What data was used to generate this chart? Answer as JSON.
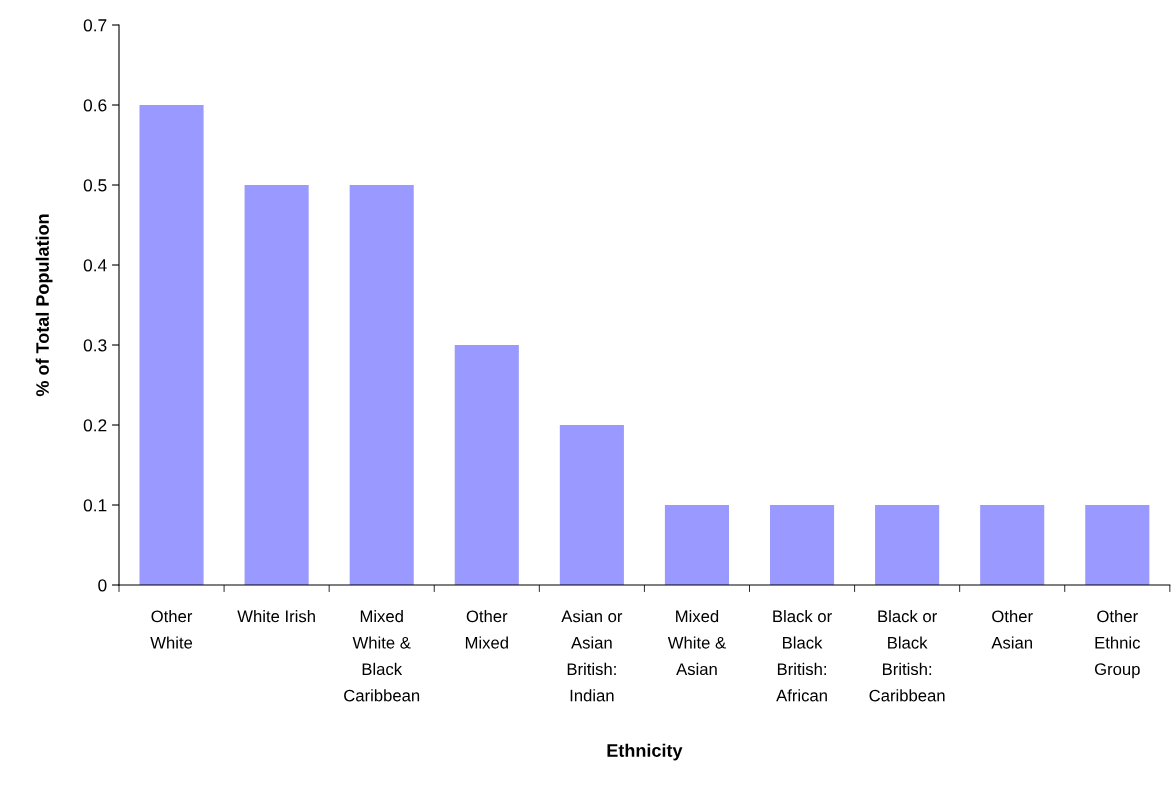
{
  "chart_data": {
    "type": "bar",
    "xlabel": "Ethnicity",
    "ylabel": "% of Total Population",
    "categories": [
      "Other\nWhite",
      "White Irish",
      "Mixed\nWhite &\nBlack\nCaribbean",
      "Other\nMixed",
      "Asian or\nAsian\nBritish:\nIndian",
      "Mixed\nWhite &\nAsian",
      "Black or\nBlack\nBritish:\nAfrican",
      "Black or\nBlack\nBritish:\nCaribbean",
      "Other\nAsian",
      "Other\nEthnic\nGroup"
    ],
    "values": [
      0.6,
      0.5,
      0.5,
      0.3,
      0.2,
      0.1,
      0.1,
      0.1,
      0.1,
      0.1
    ],
    "color": "#9999ff",
    "ylim": [
      0,
      0.7
    ],
    "yticks": [
      0,
      0.1,
      0.2,
      0.3,
      0.4,
      0.5,
      0.6,
      0.7
    ],
    "grid": false,
    "legend": false
  }
}
